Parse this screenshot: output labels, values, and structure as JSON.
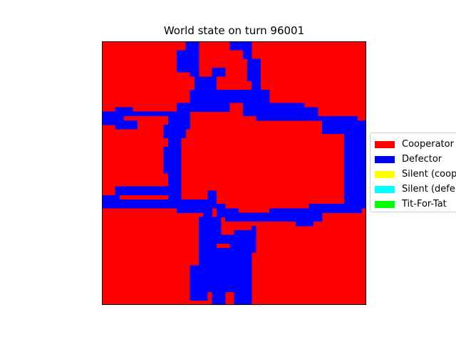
{
  "chart_data": {
    "type": "heatmap",
    "title": "World state on turn 96001",
    "grid_size": 60,
    "legend": [
      {
        "label": "Cooperator",
        "color": "#ff0000"
      },
      {
        "label": "Defector",
        "color": "#0000ff"
      },
      {
        "label": "Silent (coop)",
        "color": "#ffff00"
      },
      {
        "label": "Silent (defe",
        "color": "#00ffff"
      },
      {
        "label": "Tit-For-Tat",
        "color": "#00ff00"
      }
    ],
    "background_state": "Cooperator",
    "defector_rects": [
      [
        19,
        0,
        3,
        2
      ],
      [
        17,
        2,
        5,
        5
      ],
      [
        20,
        7,
        2,
        1
      ],
      [
        21,
        8,
        5,
        3
      ],
      [
        25,
        6,
        3,
        2
      ],
      [
        29,
        0,
        5,
        2
      ],
      [
        32,
        2,
        2,
        2
      ],
      [
        33,
        4,
        3,
        5
      ],
      [
        34,
        8,
        2,
        3
      ],
      [
        29,
        11,
        9,
        3
      ],
      [
        20,
        11,
        9,
        5
      ],
      [
        17,
        14,
        11,
        2
      ],
      [
        32,
        14,
        14,
        3
      ],
      [
        41,
        15,
        8,
        2
      ],
      [
        38,
        17,
        20,
        1
      ],
      [
        35,
        17,
        5,
        1
      ],
      [
        0,
        16,
        5,
        3
      ],
      [
        3,
        15,
        4,
        2
      ],
      [
        7,
        16,
        10,
        1
      ],
      [
        15,
        16,
        5,
        4
      ],
      [
        3,
        18,
        5,
        2
      ],
      [
        14,
        19,
        5,
        3
      ],
      [
        15,
        21,
        3,
        15
      ],
      [
        14,
        24,
        2,
        6
      ],
      [
        0,
        35,
        4,
        3
      ],
      [
        3,
        33,
        14,
        2
      ],
      [
        4,
        36,
        14,
        2
      ],
      [
        16,
        35,
        2,
        3
      ],
      [
        17,
        36,
        8,
        3
      ],
      [
        23,
        36,
        2,
        5
      ],
      [
        24,
        34,
        2,
        4
      ],
      [
        26,
        37,
        2,
        3
      ],
      [
        28,
        38,
        3,
        3
      ],
      [
        30,
        39,
        8,
        2
      ],
      [
        38,
        38,
        12,
        3
      ],
      [
        47,
        37,
        12,
        2
      ],
      [
        55,
        35,
        5,
        3
      ],
      [
        55,
        18,
        5,
        17
      ],
      [
        50,
        18,
        10,
        3
      ],
      [
        44,
        41,
        4,
        1
      ],
      [
        22,
        40,
        3,
        14
      ],
      [
        23,
        41,
        3,
        16
      ],
      [
        25,
        40,
        2,
        6
      ],
      [
        27,
        44,
        3,
        2
      ],
      [
        26,
        47,
        8,
        10
      ],
      [
        29,
        45,
        6,
        2
      ],
      [
        30,
        43,
        4,
        3
      ],
      [
        34,
        42,
        1,
        6
      ],
      [
        20,
        51,
        4,
        8
      ],
      [
        22,
        55,
        6,
        2
      ],
      [
        25,
        57,
        3,
        3
      ],
      [
        30,
        56,
        4,
        4
      ]
    ]
  }
}
